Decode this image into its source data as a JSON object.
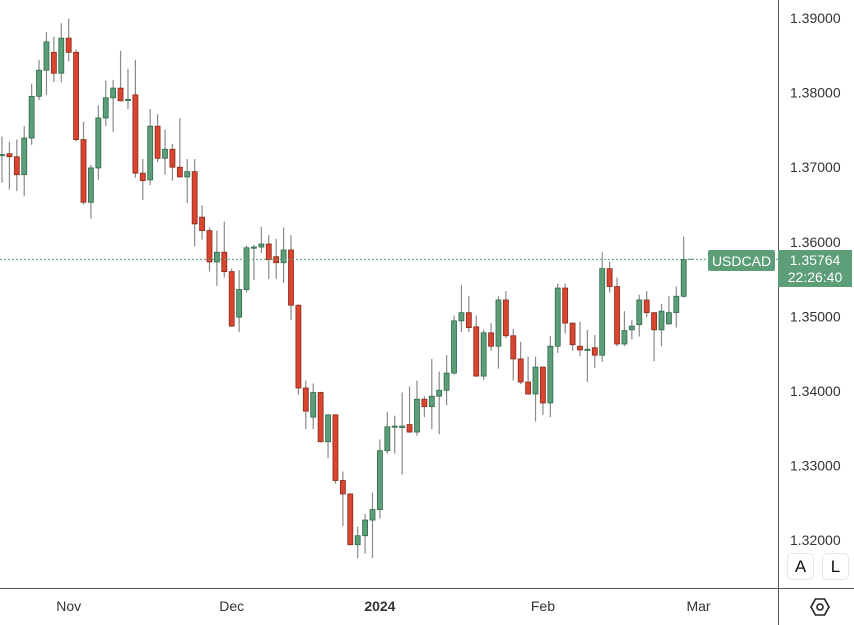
{
  "chart_data": {
    "type": "candlestick",
    "symbol": "USDCAD",
    "last_price": "1.35764",
    "countdown": "22:26:40",
    "ylim": [
      1.316,
      1.3924
    ],
    "y_ticks": [
      "1.39000",
      "1.38000",
      "1.37000",
      "1.36000",
      "1.35000",
      "1.34000",
      "1.33000",
      "1.32000"
    ],
    "y_tick_values": [
      1.39,
      1.38,
      1.37,
      1.36,
      1.35,
      1.34,
      1.33,
      1.32
    ],
    "x_ticks": [
      {
        "label": "Nov",
        "at_candle": 9,
        "bold": false
      },
      {
        "label": "Dec",
        "at_candle": 31,
        "bold": false
      },
      {
        "label": "2024",
        "at_candle": 51,
        "bold": true
      },
      {
        "label": "Feb",
        "at_candle": 73,
        "bold": false
      },
      {
        "label": "Mar",
        "at_candle": 94,
        "bold": false
      }
    ],
    "grid": false,
    "colors": {
      "up": "#5c9e78",
      "up_border": "#2e6b4a",
      "down": "#d9452f",
      "down_border": "#8a2a1c",
      "wick": "#8a8a8a",
      "price_line": "#5c9e78"
    },
    "ohlc": [
      [
        1.3716,
        1.3741,
        1.3679,
        1.3717
      ],
      [
        1.3718,
        1.3734,
        1.367,
        1.3714
      ],
      [
        1.3714,
        1.3737,
        1.3668,
        1.369
      ],
      [
        1.369,
        1.3755,
        1.3661,
        1.3739
      ],
      [
        1.3739,
        1.3812,
        1.373,
        1.3795
      ],
      [
        1.3795,
        1.3844,
        1.379,
        1.383
      ],
      [
        1.383,
        1.3881,
        1.3797,
        1.3868
      ],
      [
        1.3854,
        1.3875,
        1.3814,
        1.3826
      ],
      [
        1.3826,
        1.3893,
        1.3814,
        1.3873
      ],
      [
        1.3873,
        1.3899,
        1.3842,
        1.3854
      ],
      [
        1.3854,
        1.3858,
        1.3735,
        1.3737
      ],
      [
        1.3737,
        1.3761,
        1.365,
        1.3653
      ],
      [
        1.3653,
        1.3703,
        1.3631,
        1.3699
      ],
      [
        1.3699,
        1.3783,
        1.3683,
        1.3766
      ],
      [
        1.3766,
        1.3816,
        1.3755,
        1.3793
      ],
      [
        1.3793,
        1.3817,
        1.3747,
        1.3806
      ],
      [
        1.3806,
        1.3856,
        1.3788,
        1.3789
      ],
      [
        1.379,
        1.3832,
        1.3778,
        1.3791
      ],
      [
        1.3797,
        1.3844,
        1.3686,
        1.3692
      ],
      [
        1.3692,
        1.3711,
        1.3656,
        1.3682
      ],
      [
        1.3683,
        1.3778,
        1.3676,
        1.3755
      ],
      [
        1.3755,
        1.3771,
        1.3707,
        1.3712
      ],
      [
        1.3712,
        1.375,
        1.369,
        1.3724
      ],
      [
        1.3724,
        1.3731,
        1.3682,
        1.37
      ],
      [
        1.37,
        1.3766,
        1.3686,
        1.3687
      ],
      [
        1.3687,
        1.3711,
        1.3652,
        1.3694
      ],
      [
        1.3694,
        1.3711,
        1.3594,
        1.3624
      ],
      [
        1.3633,
        1.3649,
        1.3603,
        1.3615
      ],
      [
        1.3615,
        1.3619,
        1.356,
        1.3573
      ],
      [
        1.3573,
        1.3615,
        1.3541,
        1.3586
      ],
      [
        1.3586,
        1.3627,
        1.3552,
        1.356
      ],
      [
        1.356,
        1.3564,
        1.3486,
        1.3487
      ],
      [
        1.3499,
        1.3562,
        1.3479,
        1.3536
      ],
      [
        1.3536,
        1.3595,
        1.3532,
        1.3592
      ],
      [
        1.3592,
        1.3596,
        1.3549,
        1.3593
      ],
      [
        1.3593,
        1.362,
        1.3585,
        1.3597
      ],
      [
        1.3597,
        1.3609,
        1.355,
        1.3576
      ],
      [
        1.358,
        1.3604,
        1.355,
        1.3572
      ],
      [
        1.3572,
        1.3619,
        1.3545,
        1.3589
      ],
      [
        1.3589,
        1.3609,
        1.3495,
        1.3515
      ],
      [
        1.3515,
        1.3516,
        1.3395,
        1.3404
      ],
      [
        1.3404,
        1.3414,
        1.3349,
        1.3373
      ],
      [
        1.3365,
        1.341,
        1.3349,
        1.3398
      ],
      [
        1.3398,
        1.3399,
        1.3331,
        1.3332
      ],
      [
        1.3332,
        1.3369,
        1.331,
        1.3368
      ],
      [
        1.3368,
        1.3369,
        1.3276,
        1.328
      ],
      [
        1.328,
        1.3292,
        1.3219,
        1.3262
      ],
      [
        1.3262,
        1.3263,
        1.3193,
        1.3194
      ],
      [
        1.3194,
        1.3218,
        1.3176,
        1.3206
      ],
      [
        1.3206,
        1.3235,
        1.3182,
        1.3227
      ],
      [
        1.3227,
        1.3264,
        1.3176,
        1.3241
      ],
      [
        1.3241,
        1.3335,
        1.3229,
        1.332
      ],
      [
        1.332,
        1.3372,
        1.3316,
        1.3352
      ],
      [
        1.3352,
        1.3367,
        1.3316,
        1.3353
      ],
      [
        1.3351,
        1.3398,
        1.3288,
        1.3353
      ],
      [
        1.3355,
        1.3406,
        1.3344,
        1.3345
      ],
      [
        1.3345,
        1.3414,
        1.334,
        1.3389
      ],
      [
        1.3389,
        1.3393,
        1.3365,
        1.3379
      ],
      [
        1.3379,
        1.3443,
        1.3349,
        1.3393
      ],
      [
        1.3393,
        1.3426,
        1.3342,
        1.3401
      ],
      [
        1.3401,
        1.3448,
        1.3381,
        1.3424
      ],
      [
        1.3424,
        1.3501,
        1.3422,
        1.3494
      ],
      [
        1.3494,
        1.3542,
        1.3479,
        1.3505
      ],
      [
        1.3505,
        1.3527,
        1.3479,
        1.3485
      ],
      [
        1.3486,
        1.3501,
        1.3419,
        1.342
      ],
      [
        1.342,
        1.3482,
        1.3415,
        1.3478
      ],
      [
        1.3478,
        1.3491,
        1.3454,
        1.346
      ],
      [
        1.346,
        1.3527,
        1.343,
        1.3522
      ],
      [
        1.3522,
        1.3534,
        1.3471,
        1.3474
      ],
      [
        1.3474,
        1.3483,
        1.3414,
        1.3443
      ],
      [
        1.3443,
        1.3466,
        1.3409,
        1.3412
      ],
      [
        1.3412,
        1.3446,
        1.3395,
        1.3396
      ],
      [
        1.3396,
        1.3446,
        1.3359,
        1.3432
      ],
      [
        1.3432,
        1.3433,
        1.3368,
        1.3384
      ],
      [
        1.3384,
        1.3474,
        1.3365,
        1.346
      ],
      [
        1.346,
        1.3544,
        1.3451,
        1.3538
      ],
      [
        1.3538,
        1.3544,
        1.3477,
        1.3491
      ],
      [
        1.3491,
        1.3492,
        1.3454,
        1.3462
      ],
      [
        1.346,
        1.3493,
        1.3447,
        1.3455
      ],
      [
        1.3455,
        1.3482,
        1.3412,
        1.3456
      ],
      [
        1.3458,
        1.3475,
        1.3431,
        1.3448
      ],
      [
        1.3448,
        1.3586,
        1.3439,
        1.3564
      ],
      [
        1.3564,
        1.3573,
        1.3532,
        1.354
      ],
      [
        1.354,
        1.3552,
        1.346,
        1.3463
      ],
      [
        1.3463,
        1.3507,
        1.346,
        1.3481
      ],
      [
        1.3482,
        1.3495,
        1.3469,
        1.3487
      ],
      [
        1.3489,
        1.3529,
        1.3473,
        1.3522
      ],
      [
        1.3522,
        1.3534,
        1.3499,
        1.3505
      ],
      [
        1.3505,
        1.3506,
        1.344,
        1.3482
      ],
      [
        1.3482,
        1.3517,
        1.346,
        1.3507
      ],
      [
        1.349,
        1.3527,
        1.3489,
        1.3505
      ],
      [
        1.3505,
        1.354,
        1.3485,
        1.3527
      ],
      [
        1.3527,
        1.3607,
        1.3525,
        1.35764
      ]
    ]
  },
  "controls": {
    "auto_scale": "A",
    "log_scale": "L",
    "settings_icon": "hexagon-gear-icon"
  }
}
